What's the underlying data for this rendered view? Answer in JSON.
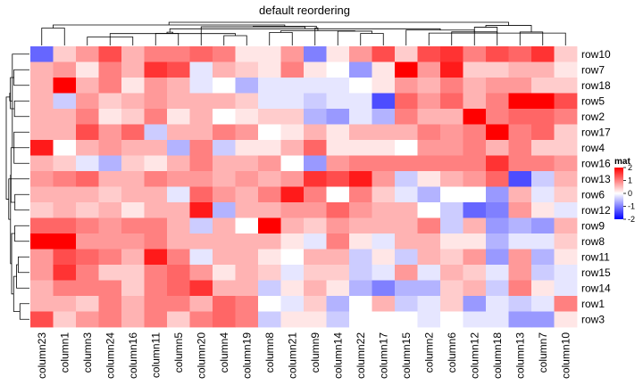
{
  "chart_data": {
    "type": "heatmap",
    "title": "default reordering",
    "columns": [
      "column23",
      "column1",
      "column3",
      "column24",
      "column16",
      "column11",
      "column5",
      "column20",
      "column4",
      "column19",
      "column8",
      "column21",
      "column9",
      "column14",
      "column22",
      "column17",
      "column15",
      "column2",
      "column6",
      "column12",
      "column18",
      "column13",
      "column7",
      "column10"
    ],
    "rows": [
      "row10",
      "row7",
      "row18",
      "row5",
      "row2",
      "row17",
      "row4",
      "row16",
      "row13",
      "row6",
      "row12",
      "row9",
      "row8",
      "row11",
      "row15",
      "row14",
      "row1",
      "row3"
    ],
    "values": [
      [
        -1.2,
        0.4,
        0.8,
        1.4,
        0.6,
        1.0,
        1.0,
        1.2,
        1.0,
        0.2,
        0.2,
        0.8,
        -1.0,
        0.2,
        0.8,
        1.4,
        0.4,
        1.4,
        1.6,
        1.0,
        1.4,
        1.2,
        1.6,
        0.4
      ],
      [
        0.6,
        0.8,
        0.2,
        1.0,
        0.6,
        1.6,
        1.4,
        -0.2,
        0.6,
        0.4,
        0.2,
        1.0,
        0.2,
        0.0,
        -0.8,
        0.2,
        2.4,
        0.8,
        1.8,
        0.4,
        0.4,
        0.6,
        0.6,
        0.2
      ],
      [
        0.6,
        2.0,
        0.6,
        1.0,
        0.2,
        0.8,
        0.6,
        -0.2,
        0.0,
        -0.6,
        -0.2,
        -0.2,
        -0.2,
        -0.2,
        0.0,
        0.2,
        0.8,
        0.6,
        1.0,
        0.6,
        0.8,
        0.8,
        0.4,
        0.4
      ],
      [
        0.6,
        -0.4,
        0.8,
        0.4,
        0.6,
        0.8,
        0.6,
        0.6,
        0.6,
        0.4,
        -0.2,
        -0.2,
        -0.4,
        -0.2,
        -0.2,
        -1.4,
        1.2,
        0.8,
        1.2,
        0.6,
        1.0,
        2.2,
        2.4,
        1.4
      ],
      [
        0.6,
        0.6,
        1.0,
        0.2,
        0.4,
        1.0,
        0.2,
        0.6,
        0.0,
        0.2,
        0.4,
        0.4,
        -0.6,
        -0.8,
        -0.2,
        -0.6,
        1.0,
        0.6,
        0.6,
        2.4,
        1.0,
        1.2,
        1.2,
        1.0
      ],
      [
        0.6,
        0.6,
        1.4,
        0.8,
        1.2,
        -0.4,
        0.6,
        0.6,
        1.0,
        0.8,
        0.0,
        0.2,
        0.6,
        0.2,
        0.6,
        0.6,
        0.6,
        1.0,
        0.8,
        1.0,
        2.4,
        1.0,
        1.2,
        0.4
      ],
      [
        1.8,
        0.0,
        0.6,
        0.8,
        0.6,
        0.6,
        -0.6,
        1.0,
        -0.4,
        0.2,
        0.2,
        0.6,
        1.2,
        0.2,
        0.2,
        0.2,
        0.0,
        0.8,
        0.8,
        1.0,
        0.6,
        1.0,
        0.4,
        0.4
      ],
      [
        0.6,
        0.4,
        -0.2,
        -0.6,
        0.4,
        0.2,
        0.6,
        1.0,
        0.6,
        0.6,
        0.8,
        0.0,
        -0.8,
        0.8,
        1.0,
        1.0,
        1.0,
        1.0,
        1.0,
        1.0,
        1.6,
        1.0,
        1.0,
        0.8
      ],
      [
        0.8,
        1.0,
        1.2,
        0.6,
        0.6,
        1.0,
        0.8,
        0.8,
        0.6,
        0.8,
        0.6,
        0.8,
        1.6,
        1.4,
        1.8,
        0.8,
        -0.4,
        0.2,
        0.6,
        0.8,
        1.2,
        -1.4,
        -0.4,
        0.6
      ],
      [
        0.6,
        0.6,
        0.6,
        0.4,
        0.6,
        0.6,
        -0.2,
        1.2,
        0.8,
        0.6,
        1.0,
        1.8,
        1.0,
        0.0,
        1.0,
        0.4,
        -0.2,
        -0.6,
        0.0,
        0.0,
        -0.8,
        0.6,
        -0.2,
        0.4
      ],
      [
        0.4,
        0.6,
        0.4,
        0.6,
        0.2,
        0.6,
        0.6,
        1.8,
        -0.6,
        0.6,
        0.6,
        0.8,
        0.8,
        1.2,
        0.8,
        0.6,
        0.6,
        0.0,
        -0.4,
        -1.2,
        -1.0,
        0.8,
        0.2,
        -0.2
      ],
      [
        1.2,
        1.2,
        1.0,
        0.8,
        1.0,
        1.0,
        0.6,
        -0.4,
        0.6,
        0.0,
        2.2,
        0.6,
        0.4,
        0.8,
        0.6,
        0.6,
        0.6,
        1.0,
        -0.4,
        0.6,
        -0.8,
        -0.6,
        -0.8,
        0.6
      ],
      [
        2.0,
        2.6,
        0.8,
        0.8,
        0.8,
        1.0,
        0.6,
        0.6,
        0.6,
        0.6,
        0.6,
        0.2,
        -0.2,
        1.0,
        0.2,
        -0.2,
        0.6,
        0.6,
        0.2,
        0.2,
        -0.6,
        -0.2,
        -0.2,
        0.4
      ],
      [
        0.8,
        1.4,
        1.2,
        1.0,
        0.6,
        1.8,
        1.0,
        -0.2,
        0.6,
        0.6,
        0.2,
        0.0,
        0.6,
        0.6,
        -0.4,
        0.2,
        -0.4,
        0.6,
        0.4,
        0.8,
        -0.8,
        0.8,
        -0.6,
        0.2
      ],
      [
        0.8,
        1.6,
        1.0,
        0.4,
        0.4,
        1.0,
        1.2,
        0.8,
        0.2,
        0.6,
        0.4,
        -0.2,
        0.4,
        0.4,
        -0.4,
        -0.2,
        0.8,
        -0.2,
        0.6,
        0.4,
        -0.2,
        0.8,
        -0.4,
        -0.2
      ],
      [
        0.6,
        1.0,
        1.0,
        1.0,
        0.4,
        1.0,
        1.2,
        1.6,
        0.6,
        0.6,
        -0.4,
        0.2,
        0.6,
        0.2,
        -0.6,
        -1.0,
        -0.6,
        -0.6,
        0.4,
        0.6,
        -0.4,
        1.0,
        0.2,
        -0.2
      ],
      [
        0.6,
        0.6,
        0.4,
        1.0,
        0.6,
        1.0,
        1.0,
        0.6,
        1.2,
        1.0,
        0.0,
        -0.2,
        0.4,
        -0.6,
        0.0,
        0.6,
        -0.4,
        -0.2,
        0.4,
        -0.8,
        -0.2,
        -0.4,
        -0.2,
        1.0
      ],
      [
        1.4,
        0.4,
        0.8,
        1.0,
        0.6,
        1.0,
        0.4,
        1.0,
        1.2,
        1.0,
        -0.4,
        0.2,
        0.2,
        -0.4,
        0.0,
        0.0,
        0.0,
        -0.2,
        0.0,
        -0.2,
        -0.2,
        -0.8,
        -0.8,
        0.2
      ]
    ],
    "legend": {
      "title": "mat",
      "ticks": [
        2,
        1,
        0,
        -1,
        -2
      ],
      "placement": "right",
      "color_low": "#0000ff",
      "color_mid": "#ffffff",
      "color_high": "#ff0000"
    }
  }
}
